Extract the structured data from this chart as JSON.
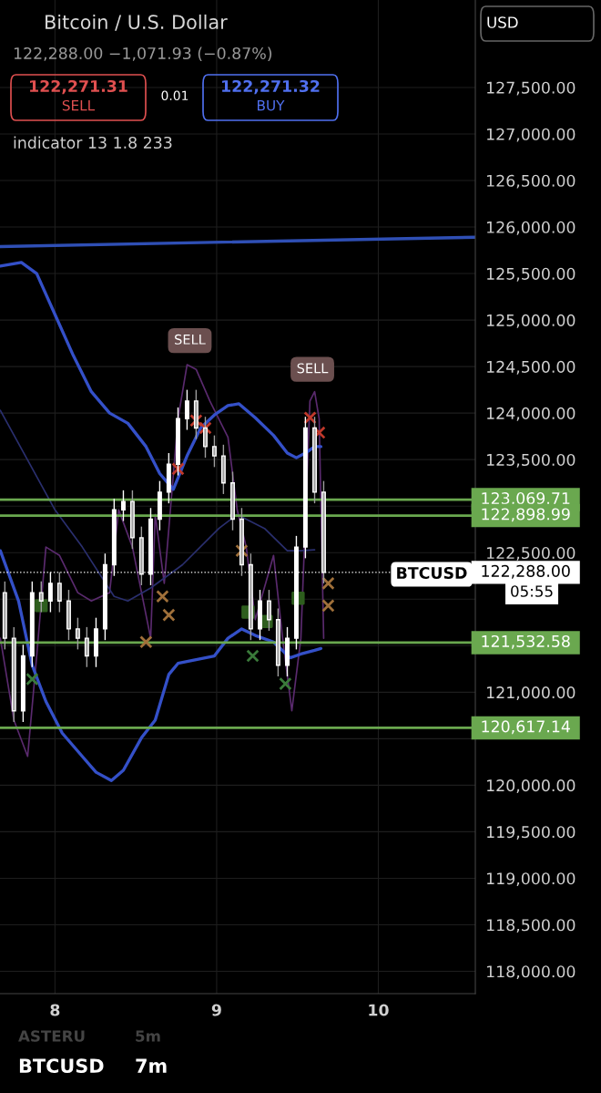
{
  "chart_data": {
    "type": "candlestick",
    "title": "Bitcoin / U.S. Dollar",
    "subtitle": "122,288.00 −1,071.93 (−0.87%)",
    "x": [
      7.69,
      7.746,
      7.803,
      7.859,
      7.915,
      7.972,
      8.028,
      8.085,
      8.141,
      8.197,
      8.254,
      8.31,
      8.366,
      8.423,
      8.479,
      8.535,
      8.592,
      8.648,
      8.704,
      8.761,
      8.817,
      8.873,
      8.93,
      8.986,
      9.042,
      9.099,
      9.155,
      9.211,
      9.268,
      9.324,
      9.38,
      9.437,
      9.493,
      9.549,
      9.606,
      9.662
    ],
    "ohlc": [
      [
        122070,
        122190,
        121460,
        121580
      ],
      [
        121580,
        121700,
        120680,
        120800
      ],
      [
        120800,
        121510,
        120680,
        121390
      ],
      [
        121390,
        122190,
        121270,
        122070
      ],
      [
        122070,
        122190,
        121860,
        121980
      ],
      [
        121980,
        122290,
        121860,
        122170
      ],
      [
        122170,
        122290,
        121860,
        121980
      ],
      [
        121980,
        122100,
        121560,
        121680
      ],
      [
        121680,
        121800,
        121460,
        121580
      ],
      [
        121580,
        121700,
        121270,
        121390
      ],
      [
        121390,
        121800,
        121270,
        121680
      ],
      [
        121680,
        122490,
        121560,
        122370
      ],
      [
        122370,
        123080,
        122250,
        122960
      ],
      [
        122960,
        123170,
        122840,
        123050
      ],
      [
        123050,
        123170,
        122540,
        122660
      ],
      [
        122660,
        122780,
        122150,
        122270
      ],
      [
        122270,
        122980,
        122150,
        122860
      ],
      [
        122860,
        123270,
        122740,
        123150
      ],
      [
        123150,
        123570,
        123030,
        123450
      ],
      [
        123450,
        124060,
        123330,
        123940
      ],
      [
        123940,
        124250,
        123820,
        124130
      ],
      [
        124130,
        124250,
        123720,
        123840
      ],
      [
        123840,
        123960,
        123520,
        123640
      ],
      [
        123640,
        123760,
        123420,
        123540
      ],
      [
        123540,
        123660,
        123130,
        123250
      ],
      [
        123250,
        123370,
        122740,
        122860
      ],
      [
        122860,
        122980,
        122250,
        122370
      ],
      [
        122370,
        122490,
        121560,
        121680
      ],
      [
        121680,
        122100,
        121560,
        121980
      ],
      [
        121980,
        122100,
        121660,
        121780
      ],
      [
        121780,
        121900,
        121170,
        121290
      ],
      [
        121290,
        121700,
        121170,
        121580
      ],
      [
        121580,
        122680,
        121460,
        122560
      ],
      [
        122560,
        123960,
        122440,
        123840
      ],
      [
        123840,
        123960,
        123030,
        123150
      ],
      [
        123150,
        123270,
        122170,
        122288
      ]
    ],
    "colors": [
      "#9e9e9e",
      "#9e9e9e",
      "#ffffff",
      "#ffffff",
      "#9e9e9e",
      "#ffffff",
      "#9e9e9e",
      "#9e9e9e",
      "#9e9e9e",
      "#9e9e9e",
      "#ffffff",
      "#ffffff",
      "#ffffff",
      "#ffffff",
      "#9e9e9e",
      "#9e9e9e",
      "#ffffff",
      "#ffffff",
      "#ffffff",
      "#ffffff",
      "#ffffff",
      "#9e9e9e",
      "#9e9e9e",
      "#9e9e9e",
      "#9e9e9e",
      "#9e9e9e",
      "#9e9e9e",
      "#9e9e9e",
      "#ffffff",
      "#9e9e9e",
      "#9e9e9e",
      "#ffffff",
      "#ffffff",
      "#ffffff",
      "#9e9e9e",
      "#9e9e9e"
    ],
    "series": [
      {
        "type": "line",
        "color": "#5a2a6e",
        "x": [
          7.662,
          7.746,
          7.831,
          7.887,
          7.944,
          8.028,
          8.141,
          8.225,
          8.338,
          8.394,
          8.479,
          8.592,
          8.62,
          8.676,
          8.761,
          8.817,
          8.873,
          8.958,
          9.07,
          9.127,
          9.183,
          9.239,
          9.352,
          9.408,
          9.465,
          9.521,
          9.577,
          9.606,
          9.634,
          9.662
        ],
        "values": [
          121580,
          120700,
          120310,
          121390,
          122560,
          122470,
          122070,
          121980,
          122070,
          122960,
          122560,
          121580,
          122910,
          122170,
          123940,
          124520,
          124470,
          124130,
          123740,
          122960,
          122560,
          121780,
          122470,
          121580,
          120800,
          121580,
          124130,
          124230,
          123940,
          121580
        ]
      },
      {
        "type": "line",
        "color": "#2a2f6e",
        "x": [
          7.662,
          8.0,
          8.169,
          8.366,
          8.451,
          8.592,
          8.789,
          9.014,
          9.127,
          9.296,
          9.437,
          9.521,
          9.606
        ],
        "values": [
          124030,
          122960,
          122560,
          122030,
          121980,
          122120,
          122370,
          122760,
          122910,
          122760,
          122520,
          122520,
          122530
        ]
      },
      {
        "type": "line",
        "color": "#2f4fb5",
        "x": [
          7.66,
          10.6
        ],
        "values": [
          125790,
          125890
        ]
      },
      {
        "type": "line",
        "color": "#3450c8",
        "x": [
          7.662,
          7.792,
          7.887,
          8.0,
          8.113,
          8.225,
          8.338,
          8.451,
          8.563,
          8.648,
          8.732,
          8.817,
          8.901,
          8.986,
          9.07,
          9.138,
          9.239,
          9.352,
          9.437,
          9.493,
          9.549,
          9.606,
          9.645
        ],
        "values": [
          125580,
          125620,
          125500,
          125060,
          124620,
          124230,
          124000,
          123890,
          123640,
          123350,
          123180,
          123540,
          123840,
          123980,
          124080,
          124100,
          123950,
          123760,
          123570,
          123520,
          123570,
          123640,
          123640
        ]
      },
      {
        "type": "line",
        "color": "#3450c8",
        "x": [
          7.662,
          7.775,
          7.859,
          7.944,
          8.045,
          8.169,
          8.254,
          8.349,
          8.423,
          8.535,
          8.62,
          8.704,
          8.761,
          8.845,
          8.986,
          9.07,
          9.155,
          9.239,
          9.352,
          9.454,
          9.521,
          9.606,
          9.645
        ],
        "values": [
          122520,
          121980,
          121290,
          120900,
          120560,
          120310,
          120140,
          120050,
          120160,
          120510,
          120700,
          121190,
          121310,
          121340,
          121390,
          121580,
          121680,
          121610,
          121540,
          121370,
          121410,
          121450,
          121470
        ]
      },
      {
        "type": "scatter",
        "marker": "cross",
        "color": "#c0392b",
        "x": [
          8.761,
          8.873,
          8.93,
          9.578,
          9.634
        ],
        "values": [
          123400,
          123920,
          123840,
          123950,
          123790
        ]
      },
      {
        "type": "scatter",
        "marker": "cross",
        "color": "#a0703a",
        "x": [
          8.563,
          8.665,
          8.704,
          9.155,
          9.69,
          9.69
        ],
        "values": [
          121540,
          122030,
          121830,
          122520,
          122170,
          121930
        ]
      },
      {
        "type": "scatter",
        "marker": "cross",
        "color": "#3a7a3a",
        "x": [
          7.859,
          9.223,
          9.425
        ],
        "values": [
          121140,
          121390,
          121090
        ]
      },
      {
        "type": "scatter",
        "marker": "square",
        "color": "#2e5e1e",
        "x": [
          7.915,
          9.194,
          9.307,
          9.504
        ],
        "values": [
          121930,
          121860,
          121760,
          122010
        ]
      }
    ],
    "xlim": [
      7.66,
      10.6
    ],
    "xticks": [
      8,
      9,
      10
    ],
    "ylim": [
      117760,
      128440
    ],
    "yticks": [
      {
        "value": 118000,
        "label": "118,000.00"
      },
      {
        "value": 118500,
        "label": "118,500.00"
      },
      {
        "value": 119000,
        "label": "119,000.00"
      },
      {
        "value": 119500,
        "label": "119,500.00"
      },
      {
        "value": 120000,
        "label": "120,000.00"
      },
      {
        "value": 120500,
        "label": null
      },
      {
        "value": 121000,
        "label": "121,000.00"
      },
      {
        "value": 121500,
        "label": null
      },
      {
        "value": 122000,
        "label": null
      },
      {
        "value": 122500,
        "label": "122,500.00"
      },
      {
        "value": 123000,
        "label": null
      },
      {
        "value": 123500,
        "label": "123,500.00"
      },
      {
        "value": 124000,
        "label": "124,000.00"
      },
      {
        "value": 124500,
        "label": "124,500.00"
      },
      {
        "value": 125000,
        "label": "125,000.00"
      },
      {
        "value": 125500,
        "label": "125,500.00"
      },
      {
        "value": 126000,
        "label": "126,000.00"
      },
      {
        "value": 126500,
        "label": "126,500.00"
      },
      {
        "value": 127000,
        "label": "127,000.00"
      },
      {
        "value": 127500,
        "label": "127,500.00"
      }
    ],
    "ref_lines": [
      {
        "axis": "y",
        "value": 123069.71,
        "label": "123,069.71",
        "color": "#6aa84f"
      },
      {
        "axis": "y",
        "value": 122898.99,
        "label": "122,898.99",
        "color": "#6aa84f"
      },
      {
        "axis": "y",
        "value": 121532.58,
        "label": "121,532.58",
        "color": "#6aa84f"
      },
      {
        "axis": "y",
        "value": 120617.14,
        "label": "120,617.14",
        "color": "#6aa84f"
      },
      {
        "axis": "y",
        "value": 122288,
        "label": "122,288.00",
        "color": "#ffffff",
        "line_style": "dotted"
      }
    ],
    "annotations": [
      "122,271.31",
      "SELL",
      "0.01",
      "122,271.32",
      "BUY",
      "indicator 13 1.8 233",
      "USD",
      "BTCUSD",
      "7m",
      "ASTERU",
      "5m",
      "BTCUSD",
      "05:55",
      {
        "text": "SELL",
        "x": 8.834,
        "y": 124520
      },
      {
        "text": "SELL",
        "x": 9.592,
        "y": 124210
      }
    ],
    "grid": true,
    "legend": false
  }
}
